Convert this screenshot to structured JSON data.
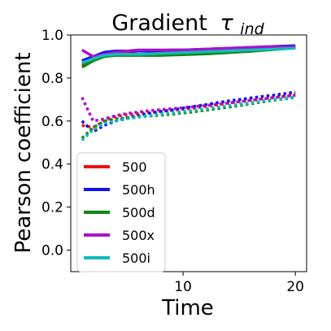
{
  "chart_data": {
    "type": "line",
    "title": "Gradient",
    "title_symbol": "τ",
    "title_subscript": "ind",
    "xlabel": "Time",
    "ylabel": "Pearson coefficient",
    "xlim": [
      0,
      21
    ],
    "ylim": [
      -0.1,
      1.0
    ],
    "xticks": [
      10,
      20
    ],
    "yticks": [
      0.0,
      0.2,
      0.4,
      0.6,
      0.8,
      1.0
    ],
    "xtick_labels": [
      "10",
      "20"
    ],
    "ytick_labels": [
      "0.0",
      "0.2",
      "0.4",
      "0.6",
      "0.8",
      "1.0"
    ],
    "grid": false,
    "legend_position": "lower-left",
    "x": [
      1,
      2,
      3,
      4,
      5,
      6,
      7,
      8,
      9,
      10,
      11,
      12,
      13,
      14,
      15,
      16,
      17,
      18,
      19,
      20
    ],
    "series": [
      {
        "name": "500",
        "color": "#ee1111",
        "solid": [
          0.86,
          0.88,
          0.91,
          0.92,
          0.92,
          0.925,
          0.925,
          0.925,
          0.925,
          0.925,
          0.928,
          0.93,
          0.932,
          0.935,
          0.937,
          0.94,
          0.942,
          0.944,
          0.946,
          0.948
        ],
        "dotted": [
          0.58,
          0.57,
          0.6,
          0.62,
          0.63,
          0.635,
          0.64,
          0.645,
          0.65,
          0.655,
          0.66,
          0.668,
          0.675,
          0.683,
          0.69,
          0.697,
          0.703,
          0.71,
          0.717,
          0.725
        ]
      },
      {
        "name": "500h",
        "color": "#1111ee",
        "solid": [
          0.88,
          0.9,
          0.92,
          0.925,
          0.925,
          0.925,
          0.925,
          0.928,
          0.93,
          0.93,
          0.932,
          0.934,
          0.936,
          0.938,
          0.94,
          0.942,
          0.944,
          0.946,
          0.948,
          0.95
        ],
        "dotted": [
          0.6,
          0.55,
          0.58,
          0.6,
          0.615,
          0.625,
          0.635,
          0.645,
          0.652,
          0.66,
          0.668,
          0.676,
          0.685,
          0.693,
          0.7,
          0.707,
          0.714,
          0.72,
          0.727,
          0.735
        ]
      },
      {
        "name": "500d",
        "color": "#118811",
        "solid": [
          0.85,
          0.88,
          0.9,
          0.905,
          0.905,
          0.905,
          0.905,
          0.905,
          0.907,
          0.908,
          0.91,
          0.912,
          0.915,
          0.918,
          0.921,
          0.924,
          0.928,
          0.932,
          0.936,
          0.94
        ],
        "dotted": [
          0.52,
          0.57,
          0.6,
          0.61,
          0.615,
          0.62,
          0.623,
          0.627,
          0.632,
          0.637,
          0.643,
          0.65,
          0.657,
          0.664,
          0.672,
          0.68,
          0.688,
          0.696,
          0.703,
          0.71
        ]
      },
      {
        "name": "500x",
        "color": "#aa11cc",
        "solid": [
          0.93,
          0.9,
          0.91,
          0.92,
          0.925,
          0.93,
          0.93,
          0.93,
          0.93,
          0.93,
          0.932,
          0.934,
          0.936,
          0.938,
          0.94,
          0.942,
          0.943,
          0.944,
          0.945,
          0.946
        ],
        "dotted": [
          0.71,
          0.6,
          0.61,
          0.625,
          0.635,
          0.642,
          0.648,
          0.653,
          0.657,
          0.662,
          0.667,
          0.672,
          0.678,
          0.684,
          0.69,
          0.696,
          0.702,
          0.708,
          0.714,
          0.72
        ]
      },
      {
        "name": "500i",
        "color": "#11bbbb",
        "solid": [
          0.87,
          0.89,
          0.905,
          0.91,
          0.91,
          0.91,
          0.912,
          0.914,
          0.916,
          0.918,
          0.92,
          0.922,
          0.924,
          0.926,
          0.928,
          0.93,
          0.932,
          0.934,
          0.936,
          0.938
        ],
        "dotted": [
          0.51,
          0.56,
          0.59,
          0.6,
          0.61,
          0.618,
          0.625,
          0.632,
          0.638,
          0.644,
          0.65,
          0.656,
          0.663,
          0.67,
          0.677,
          0.684,
          0.691,
          0.698,
          0.705,
          0.712
        ]
      }
    ]
  }
}
